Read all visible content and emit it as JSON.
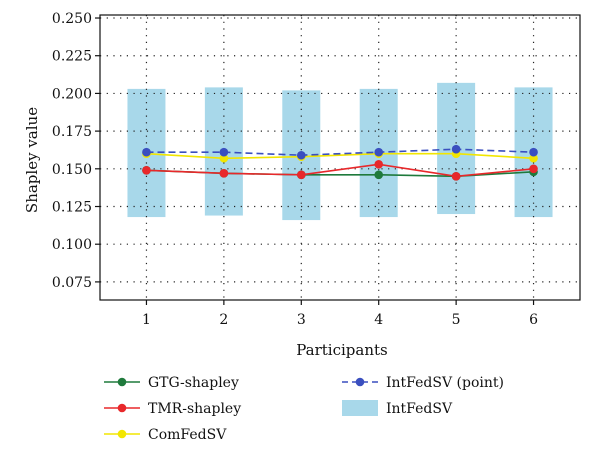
{
  "chart_data": {
    "type": "line",
    "xlabel": "Participants",
    "ylabel": "Shapley value",
    "x": [
      1,
      2,
      3,
      4,
      5,
      6
    ],
    "xlim": [
      0.4,
      6.6
    ],
    "ylim": [
      0.063,
      0.252
    ],
    "yticks": [
      0.075,
      0.1,
      0.125,
      0.15,
      0.175,
      0.2,
      0.225,
      0.25
    ],
    "ytick_labels": [
      "0.075",
      "0.100",
      "0.125",
      "0.150",
      "0.175",
      "0.200",
      "0.225",
      "0.250"
    ],
    "grid": true,
    "legend_position": "bottom",
    "series": [
      {
        "name": "GTG-shapley",
        "kind": "line",
        "color": "#1f7a3c",
        "line_style": "solid",
        "values": [
          0.149,
          0.147,
          0.146,
          0.146,
          0.145,
          0.148
        ]
      },
      {
        "name": "TMR-shapley",
        "kind": "line",
        "color": "#e8282b",
        "line_style": "solid",
        "values": [
          0.149,
          0.147,
          0.146,
          0.153,
          0.145,
          0.15
        ]
      },
      {
        "name": "ComFedSV",
        "kind": "line",
        "color": "#f2e600",
        "line_style": "solid",
        "values": [
          0.16,
          0.157,
          0.158,
          0.16,
          0.16,
          0.157
        ]
      },
      {
        "name": "IntFedSV (point)",
        "kind": "line",
        "color": "#3a4fbf",
        "line_style": "dashed",
        "values": [
          0.161,
          0.161,
          0.159,
          0.161,
          0.163,
          0.161
        ]
      },
      {
        "name": "IntFedSV",
        "kind": "interval",
        "color": "#a8d8ea",
        "low": [
          0.118,
          0.119,
          0.116,
          0.118,
          0.12,
          0.118
        ],
        "high": [
          0.203,
          0.204,
          0.202,
          0.203,
          0.207,
          0.204
        ]
      }
    ]
  }
}
